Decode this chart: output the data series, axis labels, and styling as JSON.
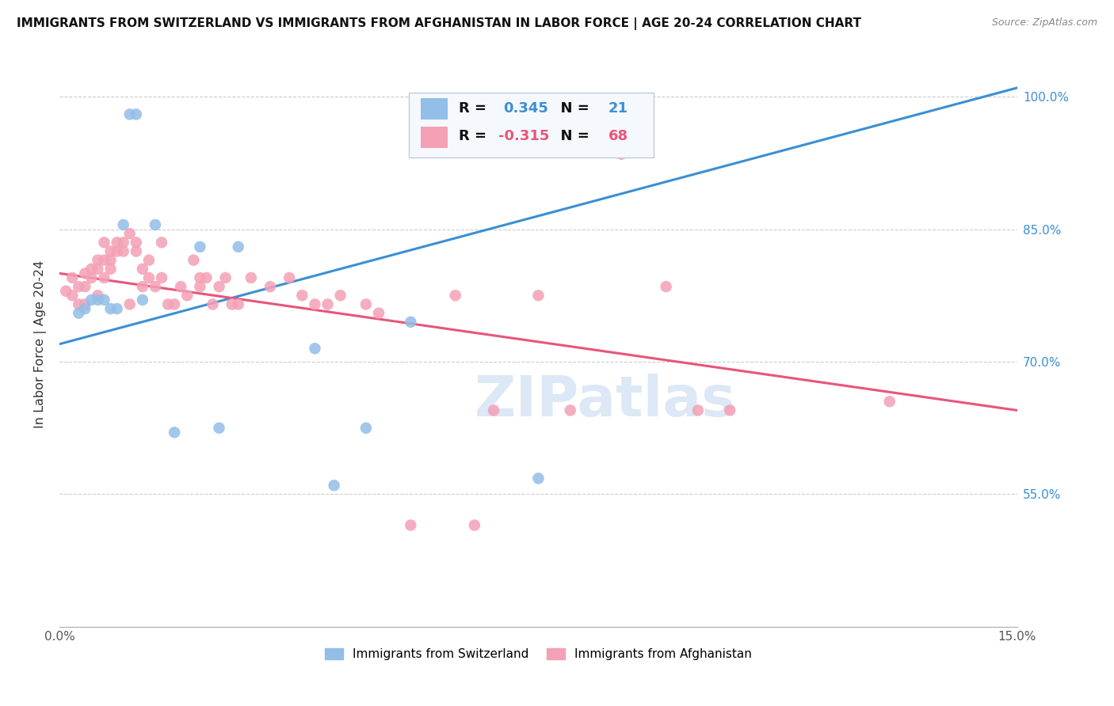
{
  "title": "IMMIGRANTS FROM SWITZERLAND VS IMMIGRANTS FROM AFGHANISTAN IN LABOR FORCE | AGE 20-24 CORRELATION CHART",
  "source": "Source: ZipAtlas.com",
  "ylabel": "In Labor Force | Age 20-24",
  "xlim": [
    0.0,
    0.15
  ],
  "ylim": [
    0.4,
    1.04
  ],
  "xticks": [
    0.0,
    0.03,
    0.06,
    0.09,
    0.12,
    0.15
  ],
  "xticklabels": [
    "0.0%",
    "",
    "",
    "",
    "",
    "15.0%"
  ],
  "ytick_vals": [
    0.55,
    0.7,
    0.85,
    1.0
  ],
  "ytick_labels": [
    "55.0%",
    "70.0%",
    "85.0%",
    "100.0%"
  ],
  "switzerland_color": "#92BEE8",
  "afghanistan_color": "#F4A0B5",
  "switzerland_R": 0.345,
  "switzerland_N": 21,
  "afghanistan_R": -0.315,
  "afghanistan_N": 68,
  "switzerland_line_color": "#3A8FD4",
  "afghanistan_line_color": "#E8557A",
  "watermark_text": "ZIPatlas",
  "watermark_color": "#dce8f5",
  "switzerland_x": [
    0.003,
    0.004,
    0.005,
    0.006,
    0.007,
    0.008,
    0.009,
    0.01,
    0.011,
    0.012,
    0.013,
    0.015,
    0.018,
    0.022,
    0.025,
    0.028,
    0.04,
    0.043,
    0.048,
    0.055,
    0.075
  ],
  "switzerland_y": [
    0.755,
    0.76,
    0.77,
    0.77,
    0.77,
    0.76,
    0.76,
    0.855,
    0.98,
    0.98,
    0.77,
    0.855,
    0.62,
    0.83,
    0.625,
    0.83,
    0.715,
    0.56,
    0.625,
    0.745,
    0.568
  ],
  "afghanistan_x": [
    0.001,
    0.002,
    0.002,
    0.003,
    0.003,
    0.004,
    0.004,
    0.004,
    0.005,
    0.005,
    0.006,
    0.006,
    0.006,
    0.007,
    0.007,
    0.007,
    0.008,
    0.008,
    0.008,
    0.009,
    0.009,
    0.01,
    0.01,
    0.011,
    0.011,
    0.012,
    0.012,
    0.013,
    0.013,
    0.014,
    0.014,
    0.015,
    0.016,
    0.016,
    0.017,
    0.018,
    0.019,
    0.02,
    0.021,
    0.022,
    0.022,
    0.023,
    0.024,
    0.025,
    0.026,
    0.027,
    0.028,
    0.03,
    0.033,
    0.036,
    0.038,
    0.04,
    0.042,
    0.044,
    0.048,
    0.05,
    0.055,
    0.062,
    0.065,
    0.068,
    0.075,
    0.08,
    0.088,
    0.092,
    0.095,
    0.1,
    0.105,
    0.13
  ],
  "afghanistan_y": [
    0.78,
    0.795,
    0.775,
    0.785,
    0.765,
    0.785,
    0.8,
    0.765,
    0.805,
    0.795,
    0.815,
    0.805,
    0.775,
    0.835,
    0.815,
    0.795,
    0.825,
    0.815,
    0.805,
    0.835,
    0.825,
    0.825,
    0.835,
    0.845,
    0.765,
    0.835,
    0.825,
    0.805,
    0.785,
    0.815,
    0.795,
    0.785,
    0.835,
    0.795,
    0.765,
    0.765,
    0.785,
    0.775,
    0.815,
    0.795,
    0.785,
    0.795,
    0.765,
    0.785,
    0.795,
    0.765,
    0.765,
    0.795,
    0.785,
    0.795,
    0.775,
    0.765,
    0.765,
    0.775,
    0.765,
    0.755,
    0.515,
    0.775,
    0.515,
    0.645,
    0.775,
    0.645,
    0.935,
    0.955,
    0.785,
    0.645,
    0.645,
    0.655
  ],
  "legend_sw_text": "R =  0.345   N =  21",
  "legend_af_text": "R = -0.315   N =  68",
  "bottom_legend_sw": "Immigrants from Switzerland",
  "bottom_legend_af": "Immigrants from Afghanistan"
}
